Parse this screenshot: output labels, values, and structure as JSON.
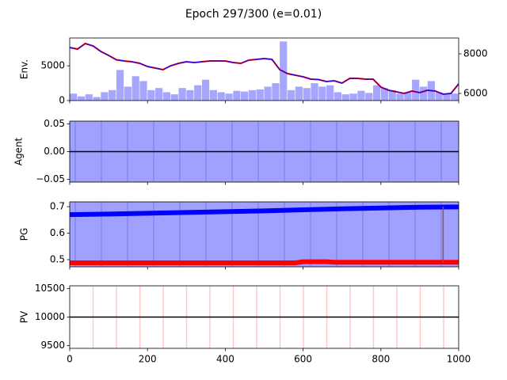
{
  "title": "Epoch 297/300 (e=0.01)",
  "chart_data": [
    {
      "type": "bar-line",
      "ylabel": "Env.",
      "ylim": [
        0,
        9000
      ],
      "yticks": [
        0,
        5000
      ],
      "y2lim": [
        5640,
        8800
      ],
      "y2ticks": [
        6000,
        8000
      ],
      "series": [
        {
          "type": "bar",
          "color": "#0000ff",
          "opacity": 0.35,
          "width": 20,
          "x": [
            0,
            20,
            40,
            60,
            80,
            100,
            120,
            140,
            160,
            180,
            200,
            220,
            240,
            260,
            280,
            300,
            320,
            340,
            360,
            380,
            400,
            420,
            440,
            460,
            480,
            500,
            520,
            540,
            560,
            580,
            600,
            620,
            640,
            660,
            680,
            700,
            720,
            740,
            760,
            780,
            800,
            820,
            840,
            860,
            880,
            900,
            920,
            940,
            960,
            980
          ],
          "values": [
            1000,
            600,
            900,
            500,
            1200,
            1500,
            4400,
            2000,
            3500,
            2800,
            1500,
            1800,
            1200,
            900,
            1800,
            1500,
            2200,
            3000,
            1500,
            1200,
            1000,
            1400,
            1300,
            1500,
            1600,
            2000,
            2500,
            8500,
            1500,
            2000,
            1800,
            2500,
            2000,
            2200,
            1200,
            900,
            1000,
            1400,
            1100,
            2200,
            1800,
            1500,
            1000,
            1200,
            3000,
            2000,
            2800,
            1200,
            900,
            1000
          ]
        },
        {
          "type": "line",
          "axis": "y2",
          "color": "#ff0000",
          "width": 2,
          "x": [
            0,
            20,
            40,
            60,
            80,
            100,
            120,
            140,
            160,
            180,
            200,
            220,
            240,
            260,
            280,
            300,
            320,
            340,
            360,
            380,
            400,
            420,
            440,
            460,
            480,
            500,
            520,
            540,
            560,
            580,
            600,
            620,
            640,
            660,
            680,
            700,
            720,
            740,
            760,
            780,
            800,
            820,
            840,
            860,
            880,
            900,
            920,
            940,
            960,
            980,
            1000
          ],
          "values": [
            8320,
            8240,
            8520,
            8400,
            8120,
            7920,
            7700,
            7640,
            7600,
            7520,
            7360,
            7280,
            7200,
            7400,
            7520,
            7600,
            7560,
            7600,
            7640,
            7640,
            7640,
            7560,
            7520,
            7680,
            7720,
            7760,
            7720,
            7200,
            7000,
            6920,
            6840,
            6720,
            6700,
            6600,
            6640,
            6520,
            6760,
            6760,
            6720,
            6720,
            6320,
            6160,
            6080,
            6000,
            6120,
            6040,
            6160,
            6120,
            5960,
            6000,
            6480
          ]
        },
        {
          "type": "line",
          "axis": "y2",
          "color": "#0000ff",
          "width": 1,
          "x": [
            0,
            20,
            40,
            60,
            80,
            100,
            120,
            140,
            160,
            180,
            200,
            220,
            240,
            260,
            280,
            300,
            320,
            340,
            360,
            380,
            400,
            420,
            440,
            460,
            480,
            500,
            520,
            540,
            560,
            580,
            600,
            620,
            640,
            660,
            680,
            700,
            720,
            740,
            760,
            780,
            800,
            820,
            840,
            860,
            880,
            900,
            920,
            940,
            960,
            980,
            1000
          ],
          "values": [
            8320,
            8240,
            8520,
            8400,
            8120,
            7920,
            7700,
            7640,
            7600,
            7520,
            7360,
            7280,
            7200,
            7400,
            7520,
            7600,
            7560,
            7600,
            7640,
            7640,
            7640,
            7560,
            7520,
            7680,
            7720,
            7760,
            7720,
            7200,
            7000,
            6920,
            6840,
            6720,
            6700,
            6600,
            6640,
            6520,
            6760,
            6760,
            6720,
            6720,
            6320,
            6160,
            6080,
            6000,
            6120,
            6040,
            6160,
            6120,
            5960,
            6000,
            6480
          ]
        }
      ]
    },
    {
      "type": "line",
      "ylabel": "Agent",
      "background": "#a0a0ff",
      "ylim": [
        -0.055,
        0.055
      ],
      "yticks": [
        {
          "value": -0.05,
          "label": "−0.05"
        },
        {
          "value": 0,
          "label": "0.00"
        },
        {
          "value": 0.05,
          "label": "0.05"
        }
      ],
      "series": [
        {
          "color": "#000000",
          "width": 1.5,
          "x": [
            0,
            1000
          ],
          "values": [
            0,
            0
          ]
        }
      ]
    },
    {
      "type": "line",
      "ylabel": "PG",
      "background": "#a0a0ff",
      "ylim": [
        0.473,
        0.718
      ],
      "yticks": [
        0.5,
        0.6,
        0.7
      ],
      "series": [
        {
          "color": "#0000ff",
          "width": 6,
          "x": [
            0,
            100,
            200,
            300,
            400,
            500,
            600,
            700,
            800,
            900,
            1000
          ],
          "values": [
            0.67,
            0.672,
            0.675,
            0.678,
            0.681,
            0.684,
            0.688,
            0.692,
            0.695,
            0.698,
            0.699
          ]
        },
        {
          "color": "#ff0000",
          "width": 6,
          "x": [
            0,
            580,
            600,
            660,
            680,
            1000
          ],
          "values": [
            0.488,
            0.488,
            0.492,
            0.492,
            0.49,
            0.49
          ]
        },
        {
          "color": "#a0522d",
          "width": 1.5,
          "x": [
            960,
            960
          ],
          "values": [
            0.49,
            0.7
          ]
        }
      ]
    },
    {
      "type": "line",
      "ylabel": "PV",
      "stripes": "#ffc8c8",
      "ylim": [
        9450,
        10550
      ],
      "yticks": [
        9500,
        10000,
        10500
      ],
      "xlim": [
        0,
        1000
      ],
      "xticks": [
        0,
        200,
        400,
        600,
        800,
        1000
      ],
      "series": [
        {
          "color": "#000000",
          "width": 1.5,
          "x": [
            0,
            1000
          ],
          "values": [
            10000,
            10000
          ]
        }
      ]
    }
  ]
}
